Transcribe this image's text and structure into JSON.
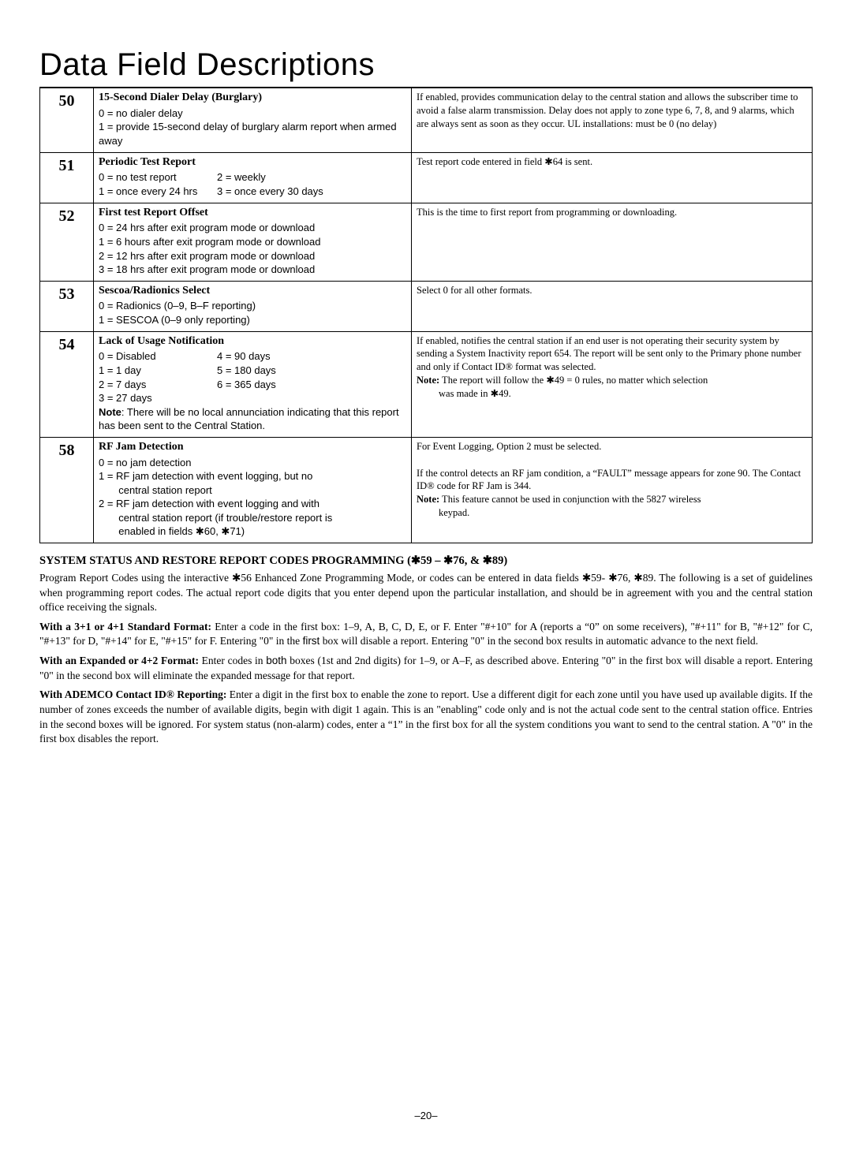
{
  "page_title": "Data Field Descriptions",
  "rows": [
    {
      "num": "50",
      "title": "15-Second Dialer Delay (Burglary)",
      "desc": "0  =  no dialer delay<br>1  =  provide 15-second delay of burglary alarm report when armed away",
      "note": "If enabled, provides communication delay to the central station and allows the subscriber  time  to avoid a false alarm transmission. Delay does not apply to zone type 6, 7, 8, and 9 alarms, which are always sent as soon as they occur. UL installations: must be 0 (no delay)"
    },
    {
      "num": "51",
      "title": "Periodic Test Report",
      "desc": "<div class='two-col'><div class='col'>0  =  no test report<br>1  =  once every 24 hrs</div><div class='col'>2  =  weekly<br>3  =  once every 30 days</div></div>",
      "note": "Test report code entered in field ✱64 is sent."
    },
    {
      "num": "52",
      "title": "First test Report Offset",
      "desc": "0  =  24 hrs after exit program mode or download<br>1  =  6 hours after exit program mode or download<br>2  =  12 hrs after exit program mode or download<br>3  =  18 hrs after exit program mode or download",
      "note": "This is the time to first report from programming or downloading."
    },
    {
      "num": "53",
      "title": "Sescoa/Radionics Select",
      "desc": "0  =  Radionics (0–9, B–F reporting)<br>1  =  SESCOA (0–9 only reporting)",
      "note": "Select 0 for all other formats."
    },
    {
      "num": "54",
      "title": "Lack of Usage Notification",
      "desc": "<div class='two-col'><div class='col'>0  =  Disabled<br>1  =  1 day<br>2  =  7 days<br>3  =  27 days</div><div class='col'>4  =  90 days<br>5  =  180 days<br>6  =  365 days</div></div><b>Note</b>: There will be no local annunciation indicating that this report has been sent to the Central Station.",
      "note": "If enabled, notifies the central station if an end user is not operating their security system by sending a System Inactivity report 654.  The report will be sent only to the Primary phone number and only if Contact ID® format was selected.<br><b>Note:</b> The report will follow the ✱49 = 0 rules, no matter which selection<span class='indent'>was made in ✱49.</span>"
    },
    {
      "num": "58",
      "title": "RF Jam Detection",
      "desc": "0  =  no jam detection<br>1  =  RF jam detection with event logging, but no<br>&nbsp;&nbsp;&nbsp;&nbsp;&nbsp;&nbsp;&nbsp;central station report<br>2  =  RF jam detection with event logging and with<br>&nbsp;&nbsp;&nbsp;&nbsp;&nbsp;&nbsp;&nbsp;central station report (if trouble/restore report is<br>&nbsp;&nbsp;&nbsp;&nbsp;&nbsp;&nbsp;&nbsp;enabled in fields ✱60, ✱71)",
      "note": "For Event Logging, Option 2 must be selected.<br><br>If the control detects an RF jam condition, a &ldquo;FAULT&rdquo; message appears for zone 90. The Contact ID® code for RF Jam is 344.<br><b>Note:</b> This feature cannot be used in conjunction with the 5827 wireless<span class='indent'>keypad.</span>"
    }
  ],
  "section_heading": "SYSTEM STATUS AND RESTORE REPORT CODES PROGRAMMING (✱59 – ✱76, & ✱89)",
  "paragraphs": [
    {
      "lead": "",
      "text": "Program Report Codes using the interactive ✱56 Enhanced Zone Programming Mode, or codes can be entered in data fields ✱59- ✱76, ✱89. The following is a set of guidelines when programming report codes.  The actual report code digits that you enter depend upon the particular installation, and should be in agreement with you and the central station office receiving the signals."
    },
    {
      "lead": "With a 3+1 or 4+1 Standard Format:",
      "text": " Enter a code in the first box: 1–9, A, B, C, D, E, or F.  Enter &quot;#+10&quot; for A (reports a &ldquo;0&rdquo; on some receivers), &quot;#+11&quot; for B, &quot;#+12&quot; for C, &quot;#+13&quot; for D, &quot;#+14&quot; for E, &quot;#+15&quot; for F. Entering &quot;0&quot; in the <span style='font-family:Arial,sans-serif'>first</span> box will disable a report. Entering &quot;0&quot; in the second box results in automatic advance to the next field."
    },
    {
      "lead": "With an Expanded or 4+2 Format:",
      "text": " Enter codes in <span style='font-family:Arial,sans-serif'>both</span> boxes (1st and 2nd digits) for 1–9, or A–F, as described above. Entering &quot;0&quot; in the first box will disable a report. Entering &quot;0&quot; in the second box will eliminate the expanded message for that report."
    },
    {
      "lead": "With ADEMCO Contact ID® Reporting:",
      "text": "  Enter a digit in the first box to enable the zone to report.  Use a different digit for each zone until you have used up available digits.  If the number of zones exceeds the number of available digits, begin with digit 1 again.  This is an &quot;enabling&quot; code only and is not the actual code sent to the central station office. Entries in the second boxes will be ignored.  For system status (non-alarm) codes, enter a &ldquo;1&rdquo; in the first box for all the system conditions you want to send to the central station. A &quot;0&quot; in the first box disables the report."
    }
  ],
  "page_number": "–20–"
}
